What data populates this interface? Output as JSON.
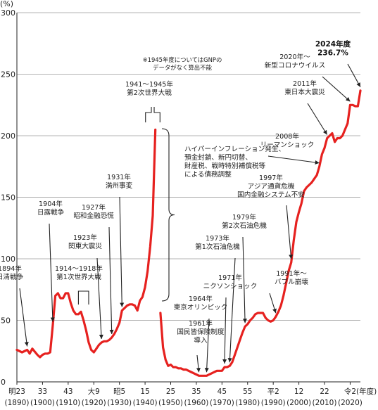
{
  "chart_data": {
    "type": "line",
    "ylabel": "(%)",
    "xlabel": "(年度)",
    "ylim": [
      0,
      300
    ],
    "xlim": [
      1890,
      2024
    ],
    "y_ticks": [
      0,
      50,
      100,
      150,
      200,
      250,
      300
    ],
    "x_ticks": [
      {
        "x": 1890,
        "era": "明23",
        "year": "(1890)"
      },
      {
        "x": 1900,
        "era": "33",
        "year": "(1900)"
      },
      {
        "x": 1910,
        "era": "43",
        "year": "(1910)"
      },
      {
        "x": 1920,
        "era": "大9",
        "year": "(1920)"
      },
      {
        "x": 1930,
        "era": "昭5",
        "year": "(1930)"
      },
      {
        "x": 1940,
        "era": "15",
        "year": "(1940)"
      },
      {
        "x": 1950,
        "era": "25",
        "year": "(1950)"
      },
      {
        "x": 1960,
        "era": "35",
        "year": "(1960)"
      },
      {
        "x": 1970,
        "era": "45",
        "year": "(1970)"
      },
      {
        "x": 1980,
        "era": "55",
        "year": "(1980)"
      },
      {
        "x": 1990,
        "era": "平2",
        "year": "(1990)"
      },
      {
        "x": 2000,
        "era": "12",
        "year": "(2000)"
      },
      {
        "x": 2010,
        "era": "22",
        "year": "(2010)"
      },
      {
        "x": 2020,
        "era": "令2",
        "year": "(2020)"
      }
    ],
    "grid": true,
    "series": [
      {
        "color": "#e6211f",
        "segments": [
          [
            [
              1890,
              26
            ],
            [
              1892,
              24
            ],
            [
              1894,
              26
            ],
            [
              1895,
              23
            ],
            [
              1896,
              27
            ],
            [
              1898,
              22
            ],
            [
              1899,
              20
            ],
            [
              1900,
              22
            ],
            [
              1901,
              23
            ],
            [
              1902,
              23
            ],
            [
              1903,
              24
            ],
            [
              1904,
              46
            ],
            [
              1905,
              70
            ],
            [
              1906,
              72
            ],
            [
              1907,
              68
            ],
            [
              1908,
              68
            ],
            [
              1909,
              72
            ],
            [
              1910,
              72
            ],
            [
              1911,
              64
            ],
            [
              1912,
              58
            ],
            [
              1913,
              55
            ],
            [
              1914,
              55
            ],
            [
              1915,
              57
            ],
            [
              1916,
              50
            ],
            [
              1917,
              42
            ],
            [
              1918,
              32
            ],
            [
              1919,
              26
            ],
            [
              1920,
              24
            ],
            [
              1921,
              27
            ],
            [
              1922,
              30
            ],
            [
              1923,
              32
            ],
            [
              1924,
              33
            ],
            [
              1925,
              33
            ],
            [
              1926,
              34
            ],
            [
              1927,
              36
            ],
            [
              1928,
              39
            ],
            [
              1929,
              43
            ],
            [
              1930,
              48
            ],
            [
              1931,
              58
            ],
            [
              1932,
              60
            ],
            [
              1933,
              62
            ],
            [
              1934,
              63
            ],
            [
              1935,
              63
            ],
            [
              1936,
              62
            ],
            [
              1937,
              58
            ],
            [
              1938,
              66
            ],
            [
              1939,
              69
            ],
            [
              1940,
              77
            ],
            [
              1941,
              90
            ],
            [
              1942,
              110
            ],
            [
              1943,
              135
            ],
            [
              1944,
              205
            ]
          ],
          [
            [
              1946,
              56
            ],
            [
              1947,
              28
            ],
            [
              1948,
              18
            ],
            [
              1949,
              13
            ],
            [
              1950,
              14
            ],
            [
              1951,
              12
            ],
            [
              1952,
              12
            ],
            [
              1953,
              11
            ],
            [
              1954,
              11
            ],
            [
              1955,
              10
            ],
            [
              1956,
              10
            ],
            [
              1957,
              9
            ],
            [
              1958,
              8
            ],
            [
              1959,
              7
            ],
            [
              1960,
              6
            ],
            [
              1961,
              5
            ],
            [
              1962,
              5
            ],
            [
              1963,
              5
            ],
            [
              1964,
              5
            ],
            [
              1965,
              6
            ],
            [
              1966,
              7
            ],
            [
              1967,
              8
            ],
            [
              1968,
              9
            ],
            [
              1969,
              9
            ],
            [
              1970,
              9
            ],
            [
              1971,
              12
            ],
            [
              1972,
              12
            ],
            [
              1973,
              13
            ],
            [
              1974,
              16
            ],
            [
              1975,
              22
            ],
            [
              1976,
              28
            ],
            [
              1977,
              34
            ],
            [
              1978,
              40
            ],
            [
              1979,
              45
            ],
            [
              1980,
              47
            ],
            [
              1981,
              50
            ],
            [
              1982,
              52
            ],
            [
              1983,
              55
            ],
            [
              1984,
              56
            ],
            [
              1985,
              56
            ],
            [
              1986,
              56
            ],
            [
              1987,
              52
            ],
            [
              1988,
              50
            ],
            [
              1989,
              49
            ],
            [
              1990,
              50
            ],
            [
              1991,
              53
            ],
            [
              1992,
              57
            ],
            [
              1993,
              62
            ],
            [
              1994,
              70
            ],
            [
              1995,
              80
            ],
            [
              1996,
              90
            ],
            [
              1997,
              97
            ],
            [
              1998,
              115
            ],
            [
              1999,
              130
            ],
            [
              2000,
              138
            ],
            [
              2001,
              145
            ],
            [
              2002,
              155
            ],
            [
              2003,
              158
            ],
            [
              2004,
              160
            ],
            [
              2005,
              162
            ],
            [
              2006,
              165
            ],
            [
              2007,
              168
            ],
            [
              2008,
              175
            ],
            [
              2009,
              185
            ],
            [
              2010,
              190
            ],
            [
              2011,
              198
            ],
            [
              2012,
              200
            ],
            [
              2013,
              202
            ],
            [
              2014,
              195
            ],
            [
              2015,
              198
            ],
            [
              2016,
              198
            ],
            [
              2017,
              200
            ],
            [
              2018,
              205
            ],
            [
              2019,
              210
            ],
            [
              2020,
              225
            ],
            [
              2021,
              225
            ],
            [
              2022,
              224
            ],
            [
              2023,
              224
            ],
            [
              2024,
              236.7
            ]
          ]
        ]
      }
    ],
    "annotations": [
      {
        "id": "a1894",
        "lines": [
          "1894年",
          "日清戦争"
        ],
        "target": [
          1894,
          26
        ]
      },
      {
        "id": "a1904",
        "lines": [
          "1904年",
          "日露戦争"
        ],
        "target": [
          1904,
          46
        ]
      },
      {
        "id": "a1914",
        "lines": [
          "1914〜1918年",
          "第1次世界大戦"
        ],
        "target": [
          1916,
          50
        ]
      },
      {
        "id": "a1923",
        "lines": [
          "1923年",
          "関東大震災"
        ],
        "target": [
          1923,
          32
        ]
      },
      {
        "id": "a1927",
        "lines": [
          "1927年",
          "昭和金融恐慌"
        ],
        "target": [
          1927,
          36
        ]
      },
      {
        "id": "a1931",
        "lines": [
          "1931年",
          "満州事変"
        ],
        "target": [
          1931,
          58
        ]
      },
      {
        "id": "a1941",
        "lines": [
          "1941〜1945年",
          "第2次世界大戦"
        ],
        "target": [
          1943,
          205
        ]
      },
      {
        "id": "anote",
        "lines": [
          "※1945年度についてはGNPの",
          "データがなく算出不能"
        ]
      },
      {
        "id": "ahyper",
        "lines": [
          "ハイパーインフレーション発生、",
          "預金封鎖、新円切替、",
          "財産税、戦時特別補償税等",
          "による債務調整"
        ]
      },
      {
        "id": "a1961",
        "lines": [
          "1961年",
          "国民皆保険制度",
          "導入"
        ],
        "target": [
          1961,
          5
        ]
      },
      {
        "id": "a1964",
        "lines": [
          "1964年",
          "東京オリンピック"
        ],
        "target": [
          1964,
          5
        ]
      },
      {
        "id": "a1971",
        "lines": [
          "1971年",
          "ニクソンショック"
        ],
        "target": [
          1971,
          12
        ]
      },
      {
        "id": "a1973",
        "lines": [
          "1973年",
          "第1次石油危機"
        ],
        "target": [
          1973,
          13
        ]
      },
      {
        "id": "a1979",
        "lines": [
          "1979年",
          "第2次石油危機"
        ],
        "target": [
          1979,
          45
        ]
      },
      {
        "id": "a1991",
        "lines": [
          "1991年〜",
          "バブル崩壊"
        ],
        "target": [
          1991,
          53
        ]
      },
      {
        "id": "a1997",
        "lines": [
          "1997年",
          "アジア通貨危機",
          "国内金融システム不安"
        ],
        "target": [
          1997,
          97
        ]
      },
      {
        "id": "a2008",
        "lines": [
          "2008年",
          "リーマンショック"
        ],
        "target": [
          2008,
          175
        ]
      },
      {
        "id": "a2011",
        "lines": [
          "2011年",
          "東日本大震災"
        ],
        "target": [
          2011,
          198
        ]
      },
      {
        "id": "a2020",
        "lines": [
          "2020年〜",
          "新型コロナウイルス"
        ],
        "target": [
          2020,
          225
        ]
      },
      {
        "id": "a2024",
        "lines": [
          "2024年度",
          "236.7%"
        ],
        "target": [
          2024,
          236.7
        ]
      }
    ]
  }
}
